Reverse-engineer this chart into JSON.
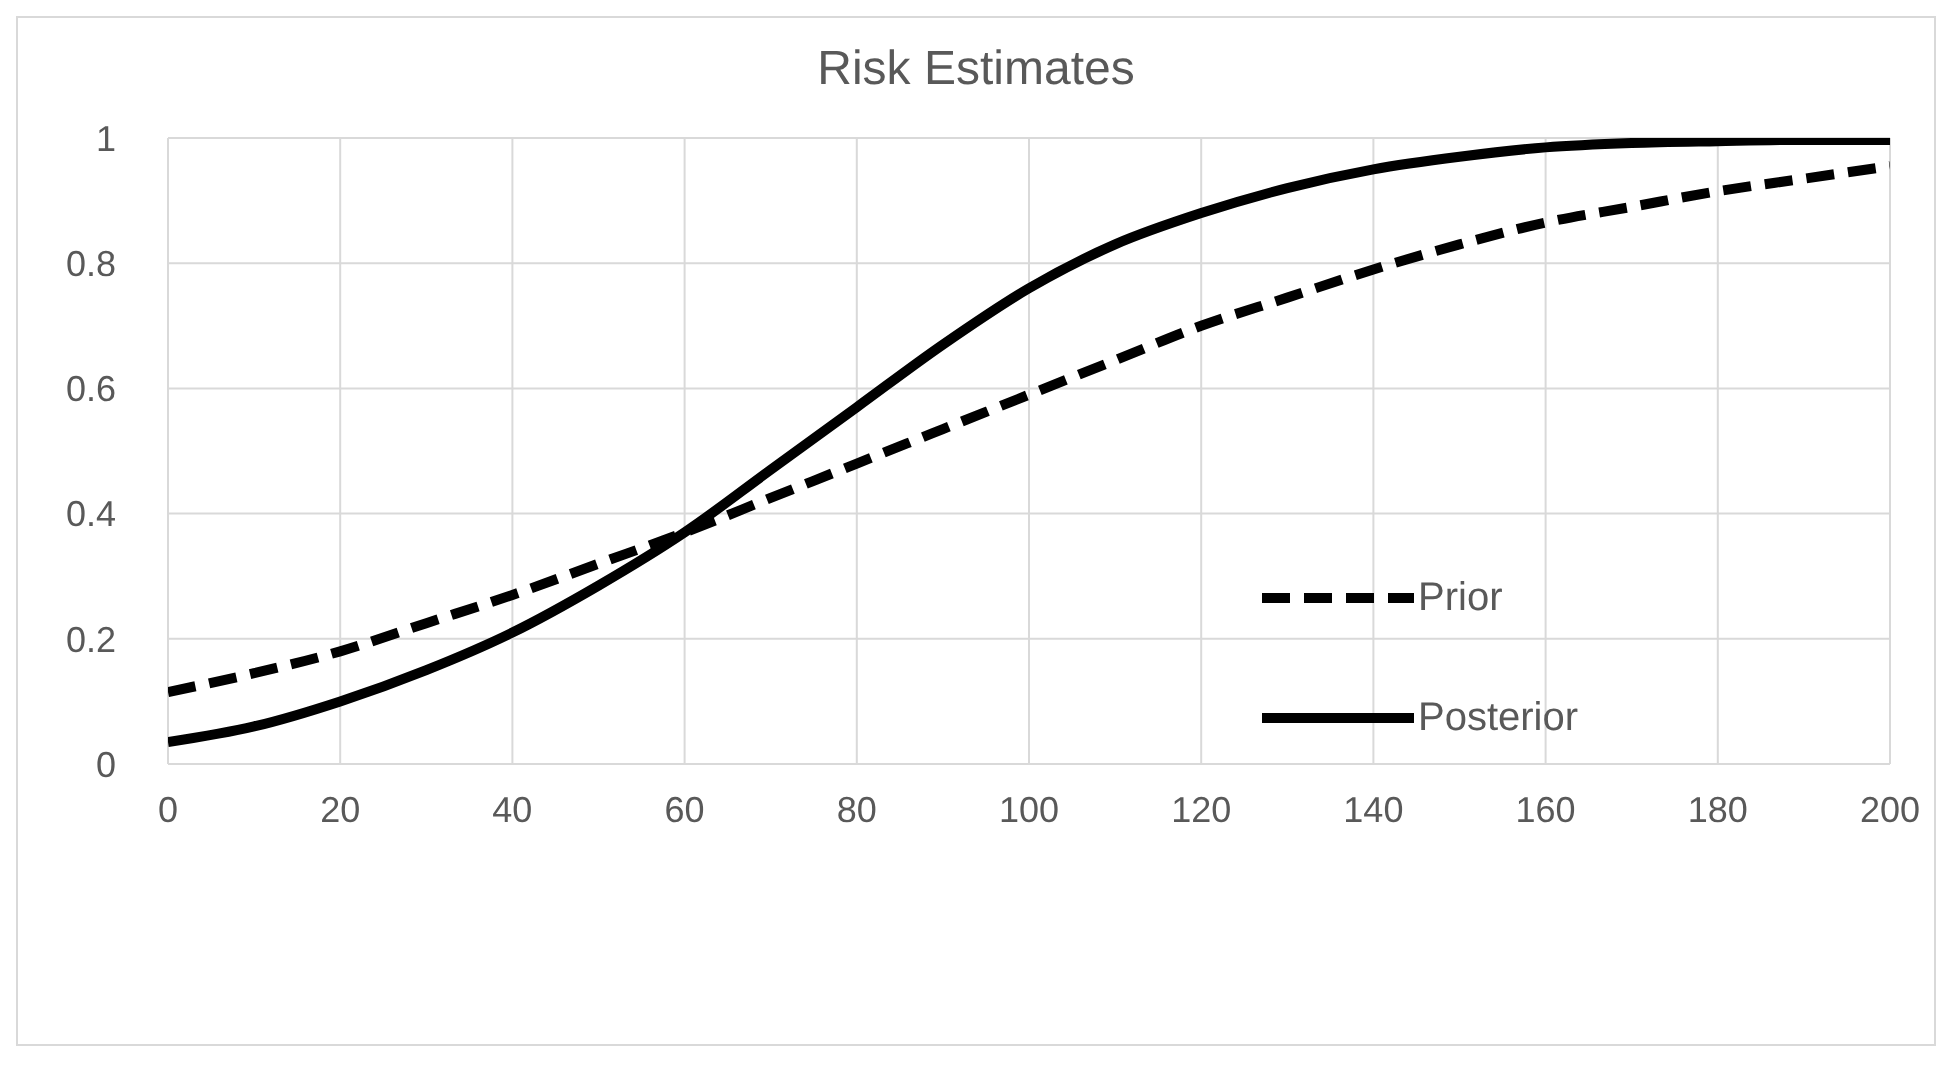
{
  "chart_data": {
    "type": "line",
    "title": "Risk Estimates",
    "x": [
      0,
      10,
      20,
      30,
      40,
      50,
      60,
      70,
      80,
      90,
      100,
      110,
      120,
      130,
      140,
      150,
      160,
      170,
      180,
      190,
      200
    ],
    "series": [
      {
        "name": "Prior",
        "color": "#000000",
        "line_style": "dashed",
        "values": [
          0.115,
          0.145,
          0.18,
          0.225,
          0.27,
          0.32,
          0.37,
          0.425,
          0.48,
          0.535,
          0.59,
          0.645,
          0.7,
          0.745,
          0.79,
          0.83,
          0.865,
          0.89,
          0.915,
          0.935,
          0.955
        ]
      },
      {
        "name": "Posterior",
        "color": "#000000",
        "line_style": "solid",
        "values": [
          0.035,
          0.06,
          0.1,
          0.15,
          0.21,
          0.285,
          0.37,
          0.47,
          0.57,
          0.67,
          0.76,
          0.83,
          0.88,
          0.92,
          0.95,
          0.97,
          0.985,
          0.992,
          0.995,
          0.997,
          0.997
        ]
      }
    ],
    "xlim": [
      0,
      200
    ],
    "xticks": [
      0,
      20,
      40,
      60,
      80,
      100,
      120,
      140,
      160,
      180,
      200
    ],
    "ylim": [
      0,
      1
    ],
    "yticks": [
      0,
      0.2,
      0.4,
      0.6,
      0.8,
      1
    ],
    "grid": true,
    "legend": "right",
    "marker": "none"
  }
}
